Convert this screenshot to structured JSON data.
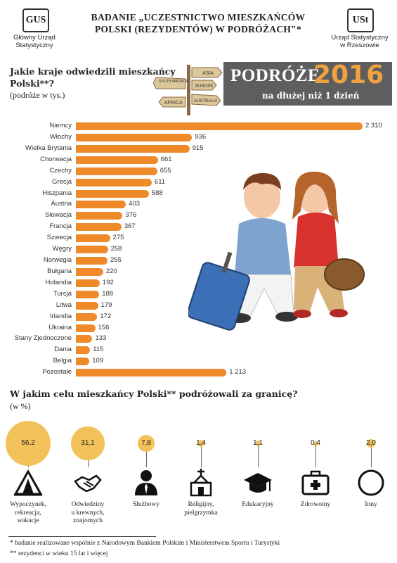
{
  "header": {
    "logo_left": "GUS",
    "org_left": [
      "Główny Urząd",
      "Statystyczny"
    ],
    "logo_right": "USt",
    "org_right": [
      "Urząd Statystyczny",
      "w Rzeszowie"
    ],
    "title_line1": "BADANIE „UCZESTNICTWO MIESZKAŃCÓW",
    "title_line2": "POLSKI (REZYDENTÓW) W PODRÓŻACH\"*"
  },
  "signpost": [
    "ASIA",
    "SOUTH AMERICA",
    "EUROPE",
    "AFRICA",
    "AUSTRALIA"
  ],
  "badge": {
    "word": "PODRÓŻE",
    "year": "2016",
    "subtitle": "na dłużej niż 1 dzień"
  },
  "colors": {
    "bar": "#ef8a2a",
    "circle": "#f2c15a",
    "badge_bg": "#5e5e5e",
    "year": "#f0a241"
  },
  "section1": {
    "question_line1": "Jakie kraje odwiedzili mieszkańcy",
    "question_line2": "Polski**?",
    "unit": "(podróże w tys.)"
  },
  "section2": {
    "question": "W jakim celu mieszkańcy Polski** podróżowali za granicę?",
    "unit": "(w %)"
  },
  "chart_data": [
    {
      "type": "bar",
      "orientation": "horizontal",
      "categories": [
        "Niemcy",
        "Włochy",
        "Wielka Brytania",
        "Chorwacja",
        "Czechy",
        "Grecja",
        "Hiszpania",
        "Austria",
        "Słowacja",
        "Francja",
        "Szwecja",
        "Węgry",
        "Norwegia",
        "Bułgaria",
        "Holandia",
        "Turcja",
        "Litwa",
        "Irlandia",
        "Ukraina",
        "Stany Zjednoczone",
        "Dania",
        "Belgia",
        "Pozostałe"
      ],
      "values": [
        2310,
        936,
        915,
        661,
        655,
        611,
        588,
        403,
        376,
        367,
        275,
        258,
        255,
        220,
        192,
        188,
        179,
        172,
        156,
        133,
        115,
        109,
        1213
      ],
      "value_labels": [
        "2 310",
        "936",
        "915",
        "661",
        "655",
        "611",
        "588",
        "403",
        "376",
        "367",
        "275",
        "258",
        "255",
        "220",
        "192",
        "188",
        "179",
        "172",
        "156",
        "133",
        "115",
        "109",
        "1 213"
      ]
    },
    {
      "type": "bubble",
      "categories": [
        "Wypoczynek, rekreacja, wakacje",
        "Odwiedziny u krewnych, znajomych",
        "Służbowy",
        "Religijny, pielgrzymka",
        "Edukacyjny",
        "Zdrowotny",
        "Inny"
      ],
      "values": [
        56.2,
        31.1,
        7.8,
        1.4,
        1.1,
        0.4,
        2.0
      ],
      "value_labels": [
        "56,2",
        "31,1",
        "7,8",
        "1,4",
        "1,1",
        "0,4",
        "2,0"
      ],
      "icons": [
        "tent-icon",
        "handshake-icon",
        "businessman-icon",
        "church-icon",
        "graduation-cap-icon",
        "first-aid-kit-icon",
        "circle-icon"
      ]
    }
  ],
  "purpose_labels": [
    [
      "Wypoczynek,",
      "rekreacja,",
      "wakacje"
    ],
    [
      "Odwiedziny",
      "u krewnych,",
      "znajomych"
    ],
    [
      "Służbowy"
    ],
    [
      "Religijny,",
      "pielgrzymka"
    ],
    [
      "Edukacyjny"
    ],
    [
      "Zdrowotny"
    ],
    [
      "Inny"
    ]
  ],
  "footnotes": [
    "* badanie realizowane wspólnie z Narodowym Bankiem Polskim i Ministerstwem Sportu i Turystyki",
    "** rezydenci w wieku 15 lat i więcej"
  ]
}
